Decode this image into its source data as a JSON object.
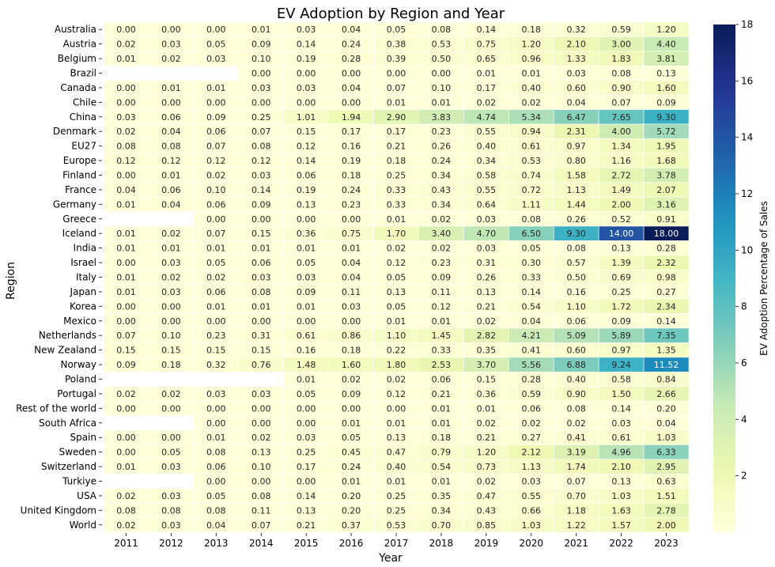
{
  "chart_data": {
    "type": "heatmap",
    "title": "EV Adoption by Region and Year",
    "xlabel": "Year",
    "ylabel": "Region",
    "colorbar_label": "EV Adoption Percentage of Sales",
    "colormap": "YlGnBu",
    "value_range": [
      0,
      18
    ],
    "colorbar_ticks": [
      2,
      4,
      6,
      8,
      10,
      12,
      14,
      16,
      18
    ],
    "x": [
      "2011",
      "2012",
      "2013",
      "2014",
      "2015",
      "2016",
      "2017",
      "2018",
      "2019",
      "2020",
      "2021",
      "2022",
      "2023"
    ],
    "y": [
      "Australia",
      "Austria",
      "Belgium",
      "Brazil",
      "Canada",
      "Chile",
      "China",
      "Denmark",
      "EU27",
      "Europe",
      "Finland",
      "France",
      "Germany",
      "Greece",
      "Iceland",
      "India",
      "Israel",
      "Italy",
      "Japan",
      "Korea",
      "Mexico",
      "Netherlands",
      "New Zealand",
      "Norway",
      "Poland",
      "Portugal",
      "Rest of the world",
      "South Africa",
      "Spain",
      "Sweden",
      "Switzerland",
      "Turkiye",
      "USA",
      "United Kingdom",
      "World"
    ],
    "values": [
      [
        0.0,
        0.0,
        0.0,
        0.01,
        0.03,
        0.04,
        0.05,
        0.08,
        0.14,
        0.18,
        0.32,
        0.59,
        1.2
      ],
      [
        0.02,
        0.03,
        0.05,
        0.09,
        0.14,
        0.24,
        0.38,
        0.53,
        0.75,
        1.2,
        2.1,
        3.0,
        4.4
      ],
      [
        0.01,
        0.02,
        0.03,
        0.1,
        0.19,
        0.28,
        0.39,
        0.5,
        0.65,
        0.96,
        1.33,
        1.83,
        3.81
      ],
      [
        null,
        null,
        null,
        0.0,
        0.0,
        0.0,
        0.0,
        0.0,
        0.01,
        0.01,
        0.03,
        0.08,
        0.13
      ],
      [
        0.0,
        0.01,
        0.01,
        0.03,
        0.03,
        0.04,
        0.07,
        0.1,
        0.17,
        0.4,
        0.6,
        0.9,
        1.6
      ],
      [
        0.0,
        0.0,
        0.0,
        0.0,
        0.0,
        0.0,
        0.01,
        0.01,
        0.02,
        0.02,
        0.04,
        0.07,
        0.09
      ],
      [
        0.03,
        0.06,
        0.09,
        0.25,
        1.01,
        1.94,
        2.9,
        3.83,
        4.74,
        5.34,
        6.47,
        7.65,
        9.3
      ],
      [
        0.02,
        0.04,
        0.06,
        0.07,
        0.15,
        0.17,
        0.17,
        0.23,
        0.55,
        0.94,
        2.31,
        4.0,
        5.72
      ],
      [
        0.08,
        0.08,
        0.07,
        0.08,
        0.12,
        0.16,
        0.21,
        0.26,
        0.4,
        0.61,
        0.97,
        1.34,
        1.95
      ],
      [
        0.12,
        0.12,
        0.12,
        0.12,
        0.14,
        0.19,
        0.18,
        0.24,
        0.34,
        0.53,
        0.8,
        1.16,
        1.68
      ],
      [
        0.0,
        0.01,
        0.02,
        0.03,
        0.06,
        0.18,
        0.25,
        0.34,
        0.58,
        0.74,
        1.58,
        2.72,
        3.78
      ],
      [
        0.04,
        0.06,
        0.1,
        0.14,
        0.19,
        0.24,
        0.33,
        0.43,
        0.55,
        0.72,
        1.13,
        1.49,
        2.07
      ],
      [
        0.01,
        0.04,
        0.06,
        0.09,
        0.13,
        0.23,
        0.33,
        0.34,
        0.64,
        1.11,
        1.44,
        2.0,
        3.16
      ],
      [
        null,
        null,
        0.0,
        0.0,
        0.0,
        0.0,
        0.01,
        0.02,
        0.03,
        0.08,
        0.26,
        0.52,
        0.91
      ],
      [
        0.01,
        0.02,
        0.07,
        0.15,
        0.36,
        0.75,
        1.7,
        3.4,
        4.7,
        6.5,
        9.3,
        14.0,
        18.0
      ],
      [
        0.01,
        0.01,
        0.01,
        0.01,
        0.01,
        0.01,
        0.02,
        0.02,
        0.03,
        0.05,
        0.08,
        0.13,
        0.28
      ],
      [
        0.0,
        0.03,
        0.05,
        0.06,
        0.05,
        0.04,
        0.12,
        0.23,
        0.31,
        0.3,
        0.57,
        1.39,
        2.32
      ],
      [
        0.01,
        0.02,
        0.02,
        0.03,
        0.03,
        0.04,
        0.05,
        0.09,
        0.26,
        0.33,
        0.5,
        0.69,
        0.98
      ],
      [
        0.01,
        0.03,
        0.06,
        0.08,
        0.09,
        0.11,
        0.13,
        0.11,
        0.13,
        0.14,
        0.16,
        0.25,
        0.27
      ],
      [
        0.0,
        0.0,
        0.01,
        0.01,
        0.01,
        0.03,
        0.05,
        0.12,
        0.21,
        0.54,
        1.1,
        1.72,
        2.34
      ],
      [
        0.0,
        0.0,
        0.0,
        0.0,
        0.0,
        0.0,
        0.01,
        0.01,
        0.02,
        0.04,
        0.06,
        0.09,
        0.14
      ],
      [
        0.07,
        0.1,
        0.23,
        0.31,
        0.61,
        0.86,
        1.1,
        1.45,
        2.82,
        4.21,
        5.09,
        5.89,
        7.35
      ],
      [
        0.15,
        0.15,
        0.15,
        0.15,
        0.16,
        0.18,
        0.22,
        0.33,
        0.35,
        0.41,
        0.6,
        0.97,
        1.35
      ],
      [
        0.09,
        0.18,
        0.32,
        0.76,
        1.48,
        1.6,
        1.8,
        2.53,
        3.7,
        5.56,
        6.88,
        9.24,
        11.52
      ],
      [
        null,
        null,
        null,
        null,
        0.01,
        0.02,
        0.02,
        0.06,
        0.15,
        0.28,
        0.4,
        0.58,
        0.84
      ],
      [
        0.02,
        0.02,
        0.03,
        0.03,
        0.05,
        0.09,
        0.12,
        0.21,
        0.36,
        0.59,
        0.9,
        1.5,
        2.66
      ],
      [
        0.0,
        0.0,
        0.0,
        0.0,
        0.0,
        0.0,
        0.0,
        0.01,
        0.01,
        0.06,
        0.08,
        0.14,
        0.2
      ],
      [
        null,
        null,
        0.0,
        0.0,
        0.0,
        0.01,
        0.01,
        0.01,
        0.02,
        0.02,
        0.02,
        0.03,
        0.04
      ],
      [
        0.0,
        0.0,
        0.01,
        0.02,
        0.03,
        0.05,
        0.13,
        0.18,
        0.21,
        0.27,
        0.41,
        0.61,
        1.03
      ],
      [
        0.0,
        0.05,
        0.08,
        0.13,
        0.25,
        0.45,
        0.47,
        0.79,
        1.2,
        2.12,
        3.19,
        4.96,
        6.33
      ],
      [
        0.01,
        0.03,
        0.06,
        0.1,
        0.17,
        0.24,
        0.4,
        0.54,
        0.73,
        1.13,
        1.74,
        2.1,
        2.95
      ],
      [
        null,
        null,
        0.0,
        0.0,
        0.0,
        0.01,
        0.01,
        0.01,
        0.02,
        0.03,
        0.07,
        0.13,
        0.63
      ],
      [
        0.02,
        0.03,
        0.05,
        0.08,
        0.14,
        0.2,
        0.25,
        0.35,
        0.47,
        0.55,
        0.7,
        1.03,
        1.51
      ],
      [
        0.08,
        0.08,
        0.08,
        0.11,
        0.13,
        0.2,
        0.25,
        0.34,
        0.43,
        0.66,
        1.18,
        1.63,
        2.78
      ],
      [
        0.02,
        0.03,
        0.04,
        0.07,
        0.21,
        0.37,
        0.53,
        0.7,
        0.85,
        1.03,
        1.22,
        1.57,
        2.0
      ]
    ],
    "value_format": "2 decimals"
  }
}
